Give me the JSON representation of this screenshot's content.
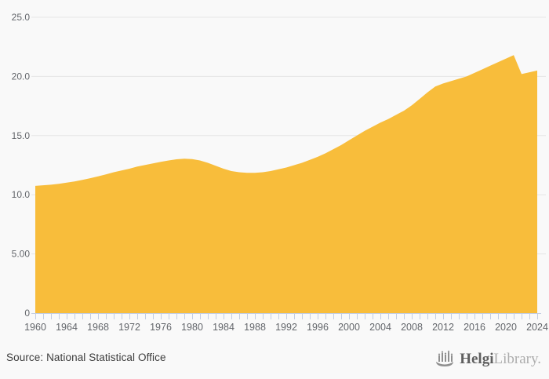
{
  "chart_data": {
    "type": "area",
    "title": "",
    "xlabel": "",
    "ylabel": "",
    "x_start": 1960,
    "x_end": 2024,
    "x_step": 1,
    "values": [
      10.75,
      10.8,
      10.85,
      10.92,
      11.02,
      11.12,
      11.25,
      11.4,
      11.55,
      11.72,
      11.9,
      12.05,
      12.2,
      12.38,
      12.52,
      12.65,
      12.78,
      12.9,
      13.0,
      13.05,
      13.02,
      12.9,
      12.7,
      12.45,
      12.2,
      12.0,
      11.9,
      11.85,
      11.85,
      11.9,
      12.0,
      12.15,
      12.3,
      12.5,
      12.7,
      12.95,
      13.2,
      13.5,
      13.85,
      14.2,
      14.6,
      15.0,
      15.4,
      15.75,
      16.1,
      16.4,
      16.75,
      17.1,
      17.55,
      18.1,
      18.65,
      19.15,
      19.4,
      19.6,
      19.8,
      20.0,
      20.3,
      20.6,
      20.9,
      21.2,
      21.5,
      21.8,
      20.2,
      20.35,
      20.5
    ],
    "ylim": [
      0,
      25
    ],
    "yticks": [
      {
        "value": 25,
        "label": "25.0"
      },
      {
        "value": 20,
        "label": "20.0"
      },
      {
        "value": 15,
        "label": "15.0"
      },
      {
        "value": 10,
        "label": "10.0"
      },
      {
        "value": 5,
        "label": "5.00"
      },
      {
        "value": 0,
        "label": "0"
      }
    ],
    "xticks": [
      1960,
      1964,
      1968,
      1972,
      1976,
      1980,
      1984,
      1988,
      1992,
      1996,
      2000,
      2004,
      2008,
      2012,
      2016,
      2020,
      2024
    ],
    "grid": true,
    "legend": "none",
    "colors": {
      "area": "#F8BD3B",
      "grid": "#e6e6e6",
      "axis": "#c3cde0",
      "tick_text": "#63666b"
    }
  },
  "footer": {
    "source": "Source: National Statistical Office",
    "brand_bold": "Helgi",
    "brand_light": "Library."
  }
}
